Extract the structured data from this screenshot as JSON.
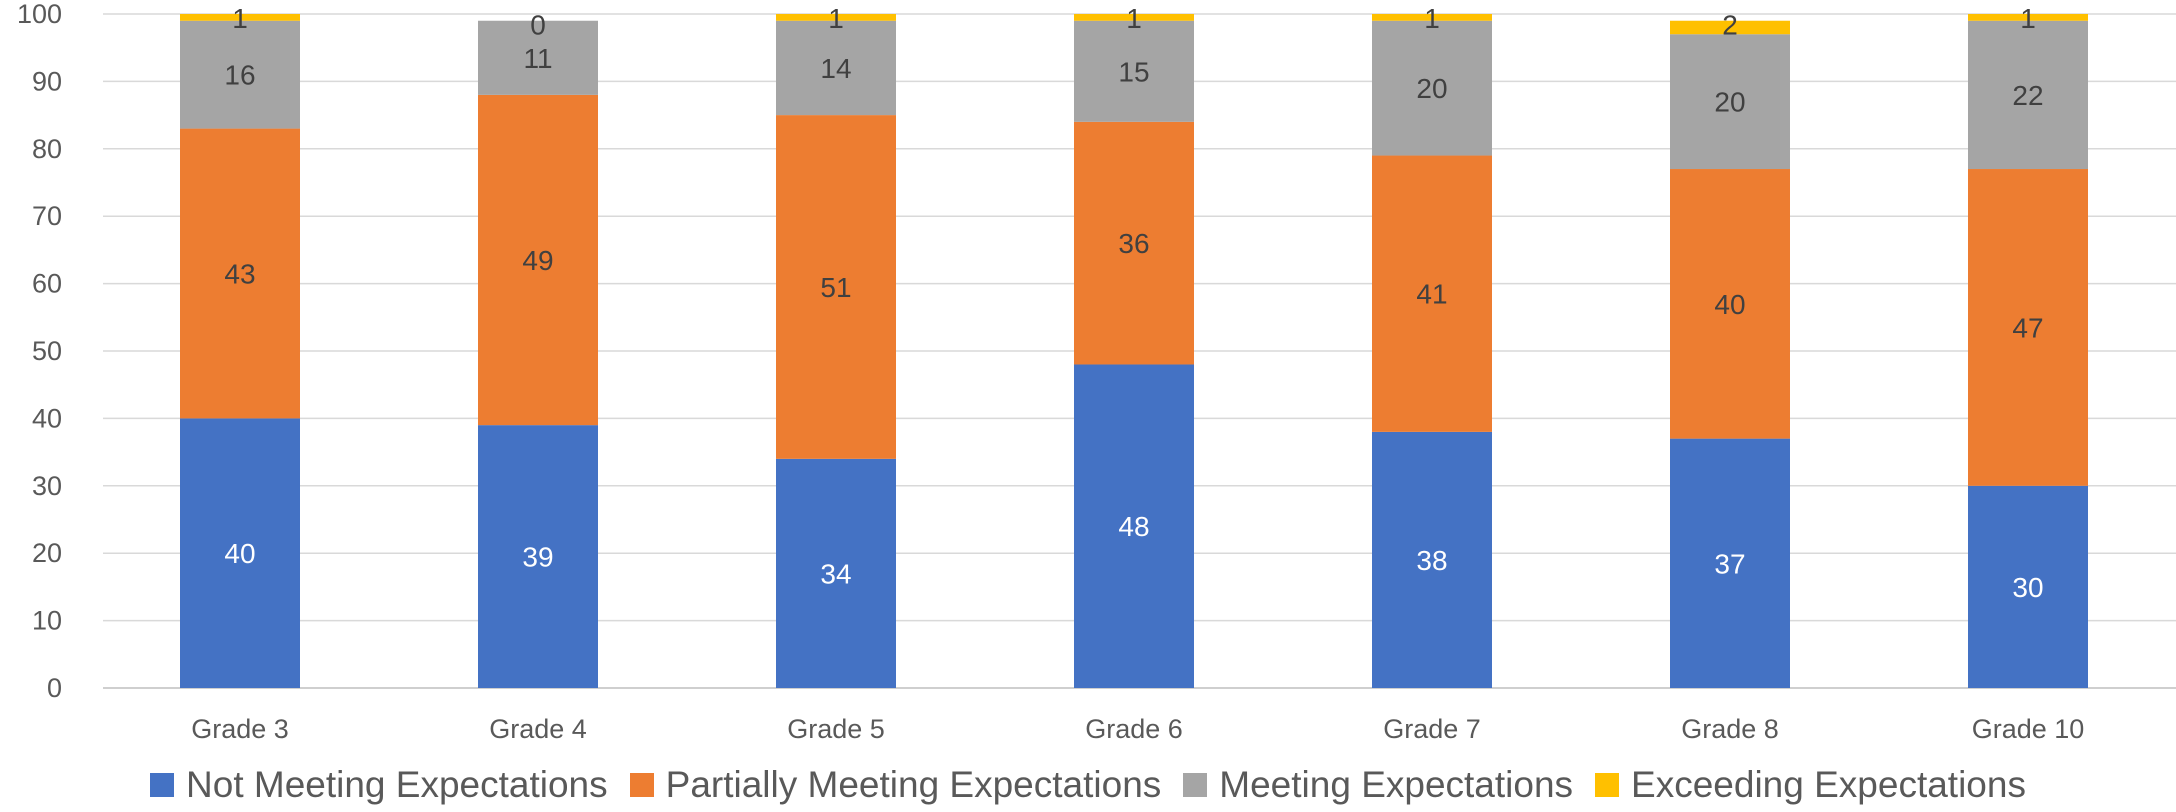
{
  "chart_data": {
    "type": "bar",
    "stacked": true,
    "title": "",
    "xlabel": "",
    "ylabel": "",
    "ylim": [
      0,
      100
    ],
    "ytick_step": 10,
    "yticks": [
      "0",
      "10",
      "20",
      "30",
      "40",
      "50",
      "60",
      "70",
      "80",
      "90",
      "100"
    ],
    "grid": true,
    "legend_position": "bottom",
    "categories": [
      "Grade 3",
      "Grade 4",
      "Grade 5",
      "Grade 6",
      "Grade 7",
      "Grade 8",
      "Grade 10"
    ],
    "series": [
      {
        "name": "Not Meeting Expectations",
        "color": "#4472c4",
        "label_color": "#ffffff",
        "values": [
          40,
          39,
          34,
          48,
          38,
          37,
          30
        ]
      },
      {
        "name": "Partially Meeting Expectations",
        "color": "#ed7d31",
        "label_color": "#404040",
        "values": [
          43,
          49,
          51,
          36,
          41,
          40,
          47
        ]
      },
      {
        "name": "Meeting Expectations",
        "color": "#a5a5a5",
        "label_color": "#404040",
        "values": [
          16,
          11,
          14,
          15,
          20,
          20,
          22
        ]
      },
      {
        "name": "Exceeding Expectations",
        "color": "#ffc000",
        "label_color": "#404040",
        "values": [
          1,
          0,
          1,
          1,
          1,
          2,
          1
        ]
      }
    ]
  }
}
